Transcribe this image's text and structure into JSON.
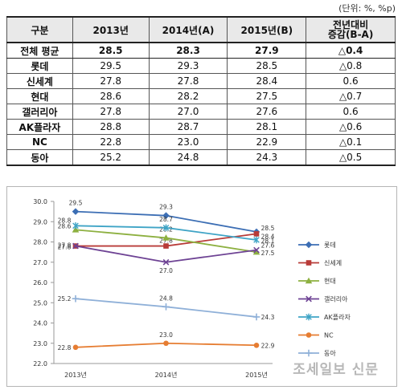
{
  "unit_note": "(단위: %, %p)",
  "table": {
    "headers": [
      "구분",
      "2013년",
      "2014년(A)",
      "2015년(B)",
      "전년대비\n증감(B-A)"
    ],
    "rows": [
      [
        "전체 평균",
        "28.5",
        "28.3",
        "27.9",
        "△0.4"
      ],
      [
        "롯데",
        "29.5",
        "29.3",
        "28.5",
        "△0.8"
      ],
      [
        "신세계",
        "27.8",
        "27.8",
        "28.4",
        "0.6"
      ],
      [
        "현대",
        "28.6",
        "28.2",
        "27.5",
        "△0.7"
      ],
      [
        "갤러리아",
        "27.8",
        "27.0",
        "27.6",
        "0.6"
      ],
      [
        "AK플라자",
        "28.8",
        "28.7",
        "28.1",
        "△0.6"
      ],
      [
        "NC",
        "22.8",
        "23.0",
        "22.9",
        "△0.1"
      ],
      [
        "동아",
        "25.2",
        "24.8",
        "24.3",
        "△0.5"
      ]
    ]
  },
  "chart_data": {
    "type": "line",
    "categories": [
      "2013년",
      "2014년",
      "2015년"
    ],
    "ylim": [
      22.0,
      30.0
    ],
    "yticks": [
      22.0,
      23.0,
      24.0,
      25.0,
      26.0,
      27.0,
      28.0,
      29.0,
      30.0
    ],
    "grid": false,
    "legend_position": "right",
    "series": [
      {
        "name": "롯데",
        "values": [
          29.5,
          29.3,
          28.5
        ],
        "color": "#3c6eb4",
        "marker": "diamond"
      },
      {
        "name": "신세계",
        "values": [
          27.8,
          27.8,
          28.4
        ],
        "color": "#b83b38",
        "marker": "square"
      },
      {
        "name": "현대",
        "values": [
          28.6,
          28.2,
          27.5
        ],
        "color": "#8db040",
        "marker": "triangle"
      },
      {
        "name": "갤러리아",
        "values": [
          27.8,
          27.0,
          27.6
        ],
        "color": "#6e4394",
        "marker": "x"
      },
      {
        "name": "AK플라자",
        "values": [
          28.8,
          28.7,
          28.1
        ],
        "color": "#3fa4c6",
        "marker": "star"
      },
      {
        "name": "NC",
        "values": [
          22.8,
          23.0,
          22.9
        ],
        "color": "#e67d32",
        "marker": "circle"
      },
      {
        "name": "동아",
        "values": [
          25.2,
          24.8,
          24.3
        ],
        "color": "#8fb0d8",
        "marker": "plus"
      }
    ]
  },
  "watermark": "조세일보 신문"
}
